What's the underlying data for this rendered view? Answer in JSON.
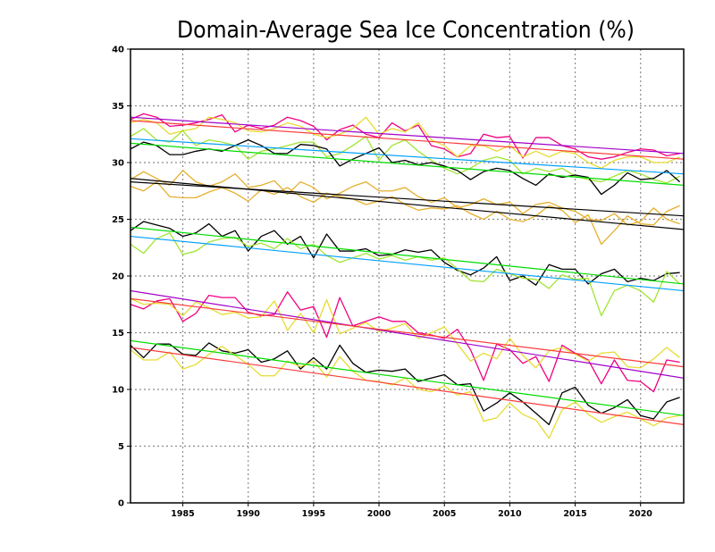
{
  "chart_data": {
    "type": "line",
    "title": "Domain-Average Sea Ice Concentration (%)",
    "xlim": [
      1981,
      2023.3
    ],
    "ylim": [
      0,
      40
    ],
    "xticks": [
      1985,
      1990,
      1995,
      2000,
      2005,
      2010,
      2015,
      2020
    ],
    "yticks": [
      0,
      5,
      10,
      15,
      20,
      25,
      30,
      35,
      40
    ],
    "grid": true,
    "x": [
      1981,
      1982,
      1983,
      1984,
      1985,
      1986,
      1987,
      1988,
      1989,
      1990,
      1991,
      1992,
      1993,
      1994,
      1995,
      1996,
      1997,
      1998,
      1999,
      2000,
      2001,
      2002,
      2003,
      2004,
      2005,
      2006,
      2007,
      2008,
      2009,
      2010,
      2011,
      2012,
      2013,
      2014,
      2015,
      2016,
      2017,
      2018,
      2019,
      2020,
      2021,
      2022,
      2023
    ],
    "series": [
      {
        "color": "#f00082",
        "values": [
          33.8,
          34.3,
          34.0,
          33.2,
          33.3,
          33.5,
          33.8,
          34.2,
          32.7,
          33.3,
          33.0,
          33.3,
          34.0,
          33.7,
          33.2,
          32.0,
          32.9,
          33.3,
          32.5,
          32.2,
          33.5,
          32.8,
          33.3,
          31.5,
          31.2,
          30.5,
          30.8,
          32.5,
          32.2,
          32.3,
          30.4,
          32.2,
          32.2,
          31.5,
          31.2,
          30.5,
          30.3,
          30.5,
          30.9,
          31.2,
          31.1,
          30.6,
          30.8
        ]
      },
      {
        "color": "#e6dc32",
        "values": [
          33.5,
          33.8,
          33.5,
          32.5,
          32.8,
          33.0,
          34.0,
          33.8,
          33.5,
          32.8,
          32.7,
          33.0,
          33.5,
          33.2,
          32.5,
          32.2,
          32.5,
          33.0,
          34.0,
          32.5,
          33.0,
          32.7,
          33.5,
          32.0,
          31.5,
          30.5,
          31.5,
          31.5,
          31.0,
          31.5,
          30.5,
          31.0,
          30.5,
          31.0,
          30.8,
          30.0,
          29.5,
          30.2,
          30.5,
          30.5,
          30.0,
          30.0,
          30.5
        ]
      },
      {
        "color": "#a0e632",
        "values": [
          32.3,
          33.0,
          32.0,
          31.8,
          32.8,
          31.5,
          32.0,
          31.8,
          31.5,
          30.3,
          31.0,
          31.2,
          31.5,
          31.8,
          31.8,
          30.5,
          30.8,
          31.5,
          32.3,
          30.2,
          31.5,
          32.0,
          31.0,
          30.2,
          29.5,
          29.0,
          29.5,
          30.2,
          30.5,
          30.2,
          29.0,
          29.5,
          29.2,
          29.5,
          28.8,
          28.5,
          28.3,
          28.8,
          29.3,
          29.0,
          28.5,
          28.2,
          28.8
        ]
      },
      {
        "color": "#000000",
        "values": [
          31.2,
          31.8,
          31.5,
          30.7,
          30.7,
          31.0,
          31.2,
          31.0,
          31.5,
          32.0,
          31.5,
          30.8,
          30.8,
          31.6,
          31.5,
          31.2,
          29.7,
          30.3,
          30.8,
          31.3,
          30.0,
          30.2,
          29.8,
          30.0,
          29.7,
          29.3,
          28.5,
          29.2,
          29.5,
          29.3,
          28.6,
          28.0,
          29.0,
          28.7,
          28.9,
          28.7,
          27.2,
          28.0,
          29.1,
          28.5,
          28.6,
          29.3,
          28.3
        ]
      },
      {
        "color": "#e6af2d",
        "values": [
          28.5,
          29.2,
          28.6,
          28.0,
          29.3,
          28.3,
          27.9,
          28.3,
          29.0,
          27.8,
          28.0,
          28.4,
          27.2,
          28.3,
          27.8,
          26.8,
          27.3,
          27.9,
          28.3,
          27.5,
          27.5,
          27.8,
          27.0,
          26.5,
          26.9,
          26.0,
          26.3,
          26.8,
          26.3,
          26.5,
          25.5,
          26.3,
          26.5,
          26.0,
          25.7,
          25.0,
          24.9,
          25.5,
          24.5,
          24.8,
          26.0,
          25.0,
          24.6
        ]
      },
      {
        "color": "#e6af2d",
        "values": [
          27.9,
          27.5,
          28.3,
          27.0,
          26.9,
          26.9,
          27.4,
          27.8,
          27.3,
          26.6,
          27.6,
          27.2,
          27.8,
          27.0,
          26.5,
          27.3,
          27.0,
          26.8,
          26.3,
          26.6,
          27.0,
          26.3,
          25.8,
          26.0,
          25.9,
          26.2,
          25.5,
          25.0,
          25.7,
          25.0,
          24.8,
          25.3,
          26.2,
          25.8,
          24.7,
          25.4,
          22.8,
          24.0,
          25.3,
          24.6,
          24.5,
          25.7,
          26.2
        ]
      },
      {
        "color": "#000000",
        "values": [
          24.0,
          24.8,
          24.5,
          24.2,
          23.5,
          23.8,
          24.6,
          23.5,
          24.0,
          22.2,
          23.5,
          24.0,
          22.8,
          23.5,
          21.6,
          23.7,
          22.2,
          22.2,
          22.4,
          21.8,
          21.9,
          22.3,
          22.1,
          22.3,
          21.2,
          20.5,
          20.1,
          20.7,
          21.7,
          19.6,
          20.0,
          19.2,
          21.0,
          20.6,
          20.6,
          19.3,
          20.2,
          20.6,
          19.5,
          19.8,
          19.6,
          20.2,
          20.3
        ]
      },
      {
        "color": "#a0e632",
        "values": [
          22.8,
          22.0,
          23.3,
          23.8,
          21.9,
          22.2,
          23.0,
          23.3,
          23.4,
          22.6,
          22.9,
          22.4,
          23.3,
          22.4,
          22.8,
          21.8,
          21.2,
          21.6,
          22.0,
          21.5,
          21.8,
          21.4,
          21.7,
          21.4,
          21.6,
          20.6,
          19.6,
          19.5,
          20.6,
          20.2,
          19.8,
          19.7,
          18.9,
          20.1,
          19.7,
          19.8,
          16.5,
          18.7,
          19.2,
          18.7,
          17.7,
          20.4,
          19.3
        ]
      },
      {
        "color": "#f00082",
        "values": [
          17.5,
          17.1,
          17.8,
          18.0,
          16.0,
          16.7,
          18.3,
          18.1,
          18.1,
          16.8,
          16.5,
          16.6,
          18.6,
          17.0,
          17.3,
          14.6,
          18.1,
          15.6,
          16.0,
          16.4,
          16.0,
          16.0,
          15.0,
          14.8,
          14.5,
          15.3,
          13.5,
          10.8,
          14.0,
          13.5,
          12.3,
          12.9,
          10.7,
          13.9,
          13.2,
          12.6,
          10.5,
          12.6,
          10.8,
          10.7,
          9.8,
          12.6,
          12.4
        ]
      },
      {
        "color": "#e6dc32",
        "values": [
          18.0,
          17.5,
          17.6,
          17.5,
          16.5,
          17.7,
          17.2,
          16.6,
          16.8,
          16.3,
          16.4,
          17.8,
          15.2,
          16.7,
          15.0,
          17.9,
          14.9,
          15.4,
          15.9,
          15.1,
          15.4,
          15.8,
          14.5,
          15.0,
          15.5,
          14.0,
          12.5,
          13.2,
          12.7,
          14.5,
          13.0,
          11.9,
          13.4,
          13.7,
          13.1,
          12.5,
          13.2,
          13.3,
          12.0,
          11.9,
          12.7,
          13.7,
          12.8
        ]
      },
      {
        "color": "#000000",
        "values": [
          13.9,
          12.8,
          14.0,
          14.0,
          13.1,
          13.0,
          14.1,
          13.4,
          13.2,
          13.5,
          12.4,
          12.7,
          13.4,
          11.8,
          12.8,
          11.8,
          13.9,
          12.3,
          11.5,
          11.7,
          11.6,
          11.8,
          10.7,
          11.0,
          11.3,
          10.4,
          10.5,
          8.1,
          8.8,
          9.7,
          8.9,
          7.9,
          6.9,
          9.7,
          10.2,
          8.6,
          7.9,
          8.4,
          9.1,
          7.7,
          7.4,
          8.9,
          9.3
        ]
      },
      {
        "color": "#e6dc32",
        "values": [
          13.5,
          12.6,
          12.6,
          13.3,
          11.8,
          12.2,
          13.1,
          13.8,
          13.0,
          12.2,
          11.2,
          11.2,
          12.5,
          12.0,
          12.5,
          11.1,
          12.9,
          11.6,
          10.8,
          10.7,
          10.4,
          11.0,
          10.0,
          9.8,
          10.3,
          9.5,
          9.8,
          7.2,
          7.5,
          8.8,
          7.8,
          7.3,
          5.7,
          8.2,
          8.9,
          7.8,
          7.1,
          7.6,
          8.0,
          7.4,
          6.8,
          7.5,
          7.7
        ]
      }
    ],
    "trend_lines": [
      {
        "color": "#fa3c3c",
        "x": [
          1981,
          2023.3
        ],
        "y": [
          33.7,
          30.3
        ]
      },
      {
        "color": "#a000c8",
        "x": [
          1981,
          2023.3
        ],
        "y": [
          34.0,
          30.8
        ]
      },
      {
        "color": "#00a0ff",
        "x": [
          1981,
          2023.3
        ],
        "y": [
          32.1,
          29.0
        ]
      },
      {
        "color": "#00dc00",
        "x": [
          1981,
          2023.3
        ],
        "y": [
          31.7,
          28.0
        ]
      },
      {
        "color": "#000000",
        "x": [
          1981,
          2023.3
        ],
        "y": [
          28.6,
          24.1
        ]
      },
      {
        "color": "#000000",
        "x": [
          1981,
          2023.3
        ],
        "y": [
          28.3,
          25.3
        ]
      },
      {
        "color": "#00dc00",
        "x": [
          1981,
          2023.3
        ],
        "y": [
          24.3,
          19.3
        ]
      },
      {
        "color": "#00a0ff",
        "x": [
          1981,
          2023.3
        ],
        "y": [
          23.5,
          18.7
        ]
      },
      {
        "color": "#a000c8",
        "x": [
          1981,
          2023.3
        ],
        "y": [
          18.7,
          11.0
        ]
      },
      {
        "color": "#fa3c3c",
        "x": [
          1981,
          2023.3
        ],
        "y": [
          18.0,
          12.0
        ]
      },
      {
        "color": "#00dc00",
        "x": [
          1981,
          2023.3
        ],
        "y": [
          14.3,
          7.7
        ]
      },
      {
        "color": "#fa3c3c",
        "x": [
          1981,
          2023.3
        ],
        "y": [
          13.7,
          6.9
        ]
      }
    ]
  }
}
